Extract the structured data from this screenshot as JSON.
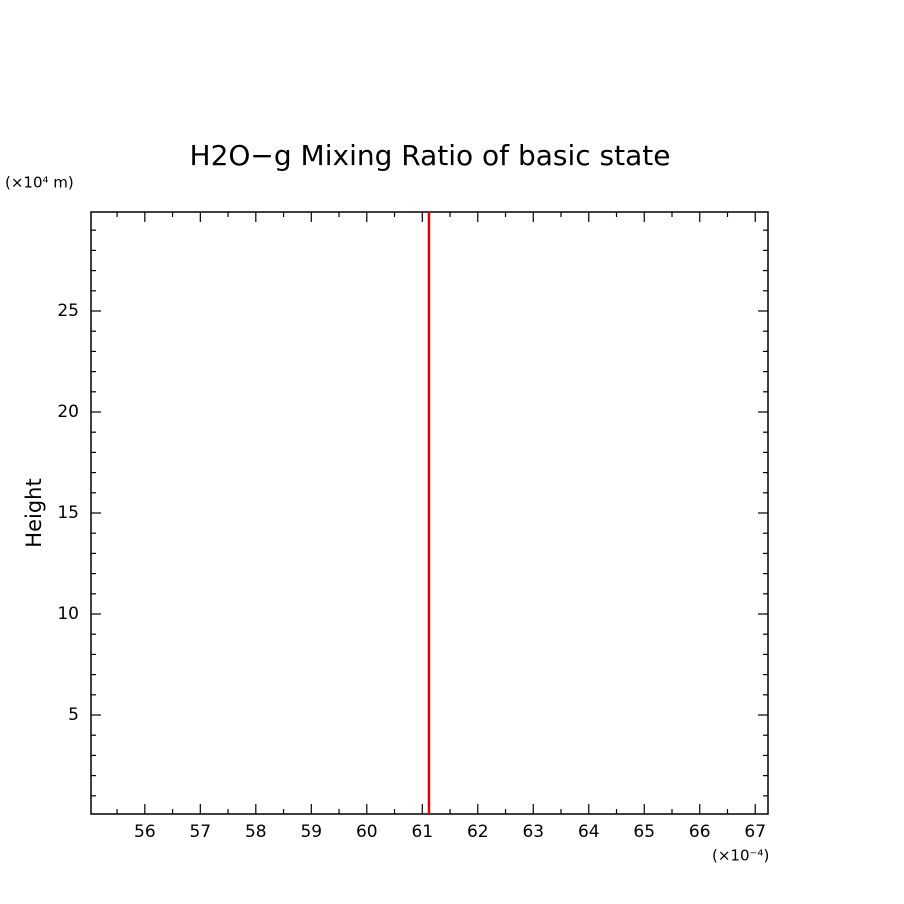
{
  "chart_data": {
    "type": "line",
    "title": "H2O−g Mixing Ratio of basic state",
    "y_label": "Height",
    "y_unit_label": "(×10⁴ m)",
    "x_unit_label": "(×10⁻⁴)",
    "x": [
      61.12,
      61.12
    ],
    "series": [
      {
        "color": "#e00000",
        "values": [
          0.1,
          29.9
        ]
      }
    ],
    "xlim": [
      55.03,
      67.23
    ],
    "ylim": [
      0.1,
      29.9
    ],
    "xticks": [
      56,
      57,
      58,
      59,
      60,
      61,
      62,
      63,
      64,
      65,
      66,
      67
    ],
    "yticks": [
      5,
      10,
      15,
      20,
      25
    ],
    "xminorticks": [
      55.5,
      56.5,
      57.5,
      58.5,
      59.5,
      60.5,
      61.5,
      62.5,
      63.5,
      64.5,
      65.5,
      66.5
    ],
    "yminorticks": [
      1,
      2,
      3,
      4,
      6,
      7,
      8,
      9,
      11,
      12,
      13,
      14,
      16,
      17,
      18,
      19,
      21,
      22,
      23,
      24,
      26,
      27,
      28,
      29
    ],
    "grid": false
  }
}
